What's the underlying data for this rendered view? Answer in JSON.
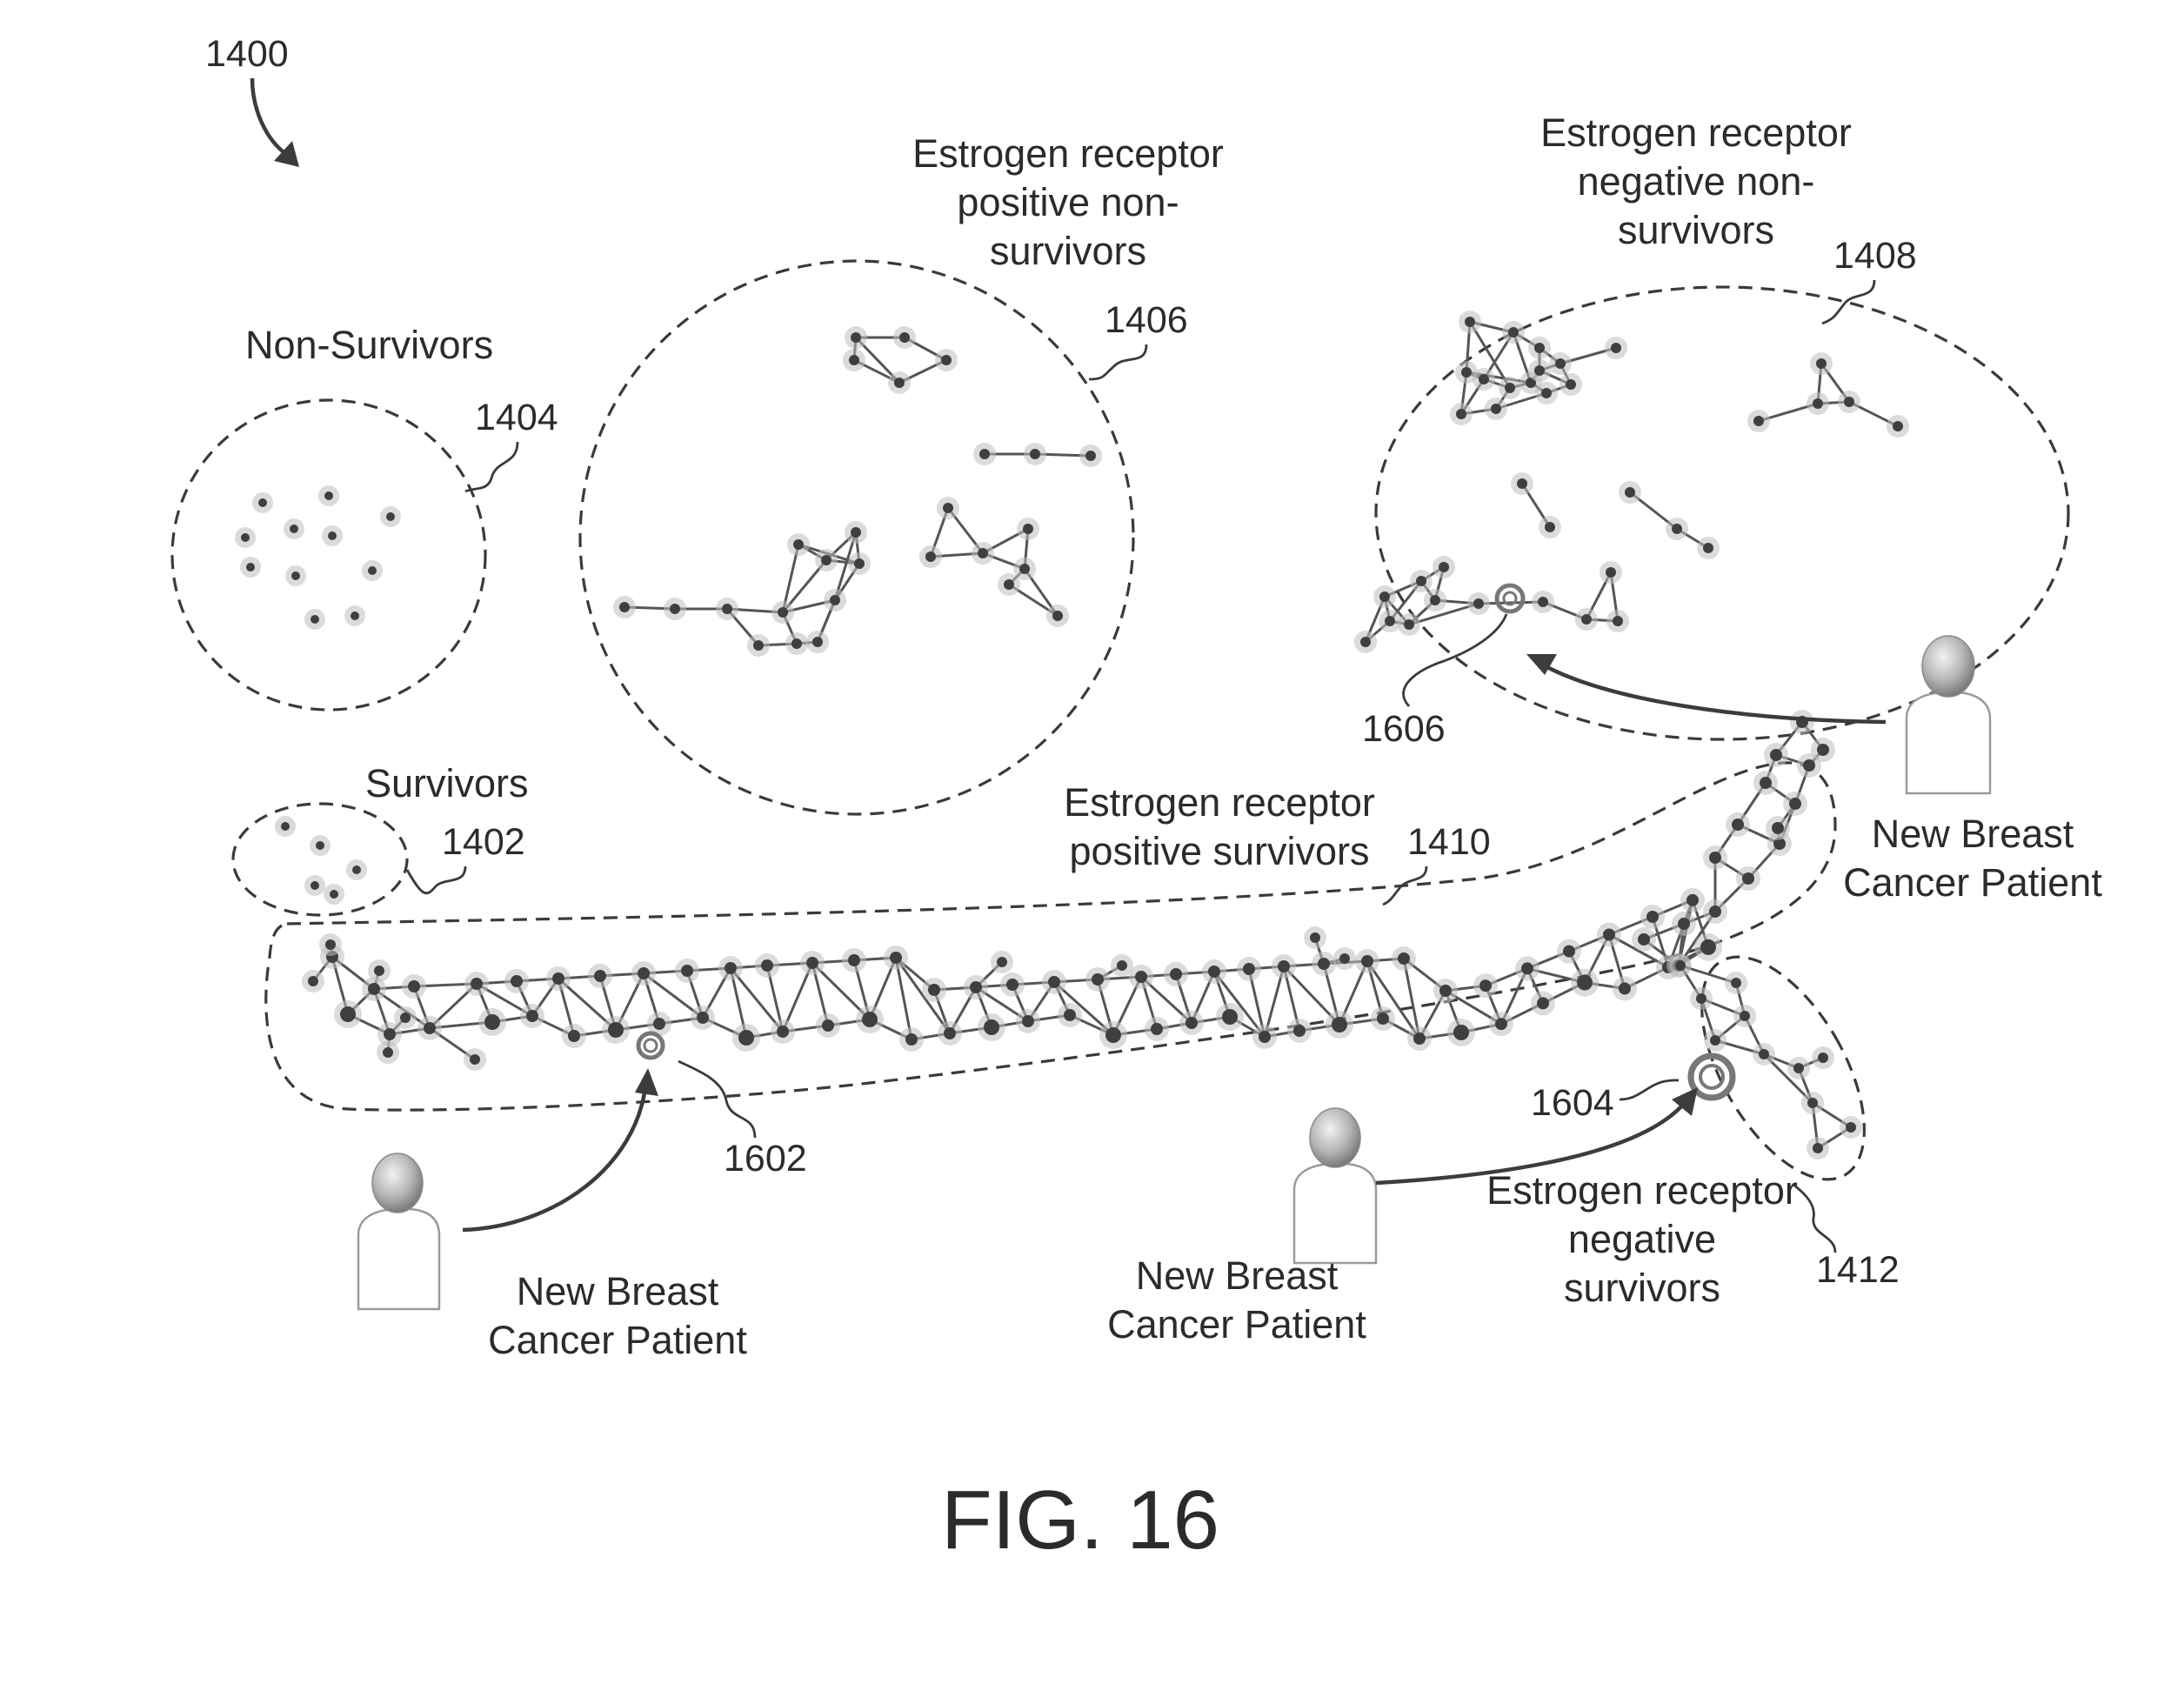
{
  "figure": {
    "ref_main": "1400",
    "caption": "FIG. 16"
  },
  "groups": {
    "survivors": {
      "label": "Survivors",
      "ref": "1402"
    },
    "non_survivors": {
      "label": "Non-Survivors",
      "ref": "1404"
    },
    "er_pos_non_survivors": {
      "label_lines": [
        "Estrogen receptor",
        "positive non-",
        "survivors"
      ],
      "ref": "1406"
    },
    "er_neg_non_survivors": {
      "label_lines": [
        "Estrogen receptor",
        "negative non-",
        "survivors"
      ],
      "ref": "1408"
    },
    "er_pos_survivors": {
      "label_lines": [
        "Estrogen receptor",
        "positive survivors"
      ],
      "ref": "1410"
    },
    "er_neg_survivors": {
      "label_lines": [
        "Estrogen receptor",
        "negative",
        "survivors"
      ],
      "ref": "1412"
    }
  },
  "patients": [
    {
      "label_lines": [
        "New Breast",
        "Cancer Patient"
      ],
      "target_ref": "1602"
    },
    {
      "label_lines": [
        "New Breast",
        "Cancer Patient"
      ],
      "target_ref": "1604"
    },
    {
      "label_lines": [
        "New Breast",
        "Cancer Patient"
      ],
      "target_ref": "1606"
    }
  ]
}
